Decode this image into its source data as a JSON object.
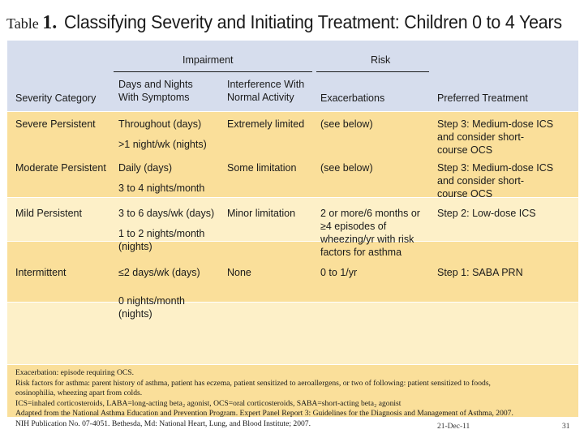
{
  "title": {
    "label": "Table",
    "number": "1.",
    "text": "Classifying Severity and Initiating Treatment: Children 0 to 4 Years"
  },
  "header": {
    "impairment": "Impairment",
    "risk": "Risk",
    "severity_category": "Severity Category",
    "days_nights": "Days and Nights\nWith Symptoms",
    "interference": "Interference With\nNormal Activity",
    "exacerbations": "Exacerbations",
    "preferred_treatment": "Preferred Treatment"
  },
  "rows": [
    {
      "category": "Severe Persistent",
      "days_nights": "Throughout (days)",
      "days_nights_2": ">1 night/wk (nights)",
      "interference": "Extremely limited",
      "exacerbations": "(see below)",
      "treatment": "Step 3: Medium-dose ICS\n    and consider short-\n    course OCS"
    },
    {
      "category": "Moderate Persistent",
      "days_nights": "Daily (days)",
      "days_nights_2": "3 to 4 nights/month",
      "interference": "Some limitation",
      "exacerbations": "(see below)",
      "treatment": "Step 3: Medium-dose ICS\n    and consider short-\n    course OCS"
    },
    {
      "category": "Mild Persistent",
      "days_nights": "3 to 6 days/wk (days)",
      "days_nights_2": "1 to 2 nights/month\n    (nights)",
      "interference": "Minor limitation",
      "exacerbations": "2 or more/6 months or\n    ≥4 episodes of\n    wheezing/yr with risk\n    factors for asthma",
      "treatment": "Step 2: Low-dose ICS"
    },
    {
      "category": "Intermittent",
      "days_nights": "≤2 days/wk (days)",
      "days_nights_2": "0 nights/month\n    (nights)",
      "interference": "None",
      "exacerbations": "0 to 1/yr",
      "treatment": "Step 1: SABA PRN"
    }
  ],
  "footnotes": [
    "Exacerbation: episode requiring OCS.",
    "Risk factors for asthma: parent history of asthma, patient has eczema, patient sensitized to aeroallergens, or two of following: patient sensitized to foods,",
    "eosinophilia, wheezing apart from colds.",
    "ICS=inhaled corticosteroids, LABA=long-acting beta₂ agonist, OCS=oral corticosteroids, SABA=short-acting beta₂ agonist",
    "Adapted from the National Asthma Education and Prevention Program. Expert Panel Report 3: Guidelines for the Diagnosis and Management of Asthma, 2007.",
    "NIH Publication No. 07-4051. Bethesda, Md: National Heart, Lung, and Blood Institute; 2007."
  ],
  "slide_footer": {
    "date": "21-Dec-11",
    "page": "31"
  },
  "colors": {
    "header_bg": "#d6dded",
    "row_dark": "#fadf9a",
    "row_light": "#fdf0c8"
  }
}
